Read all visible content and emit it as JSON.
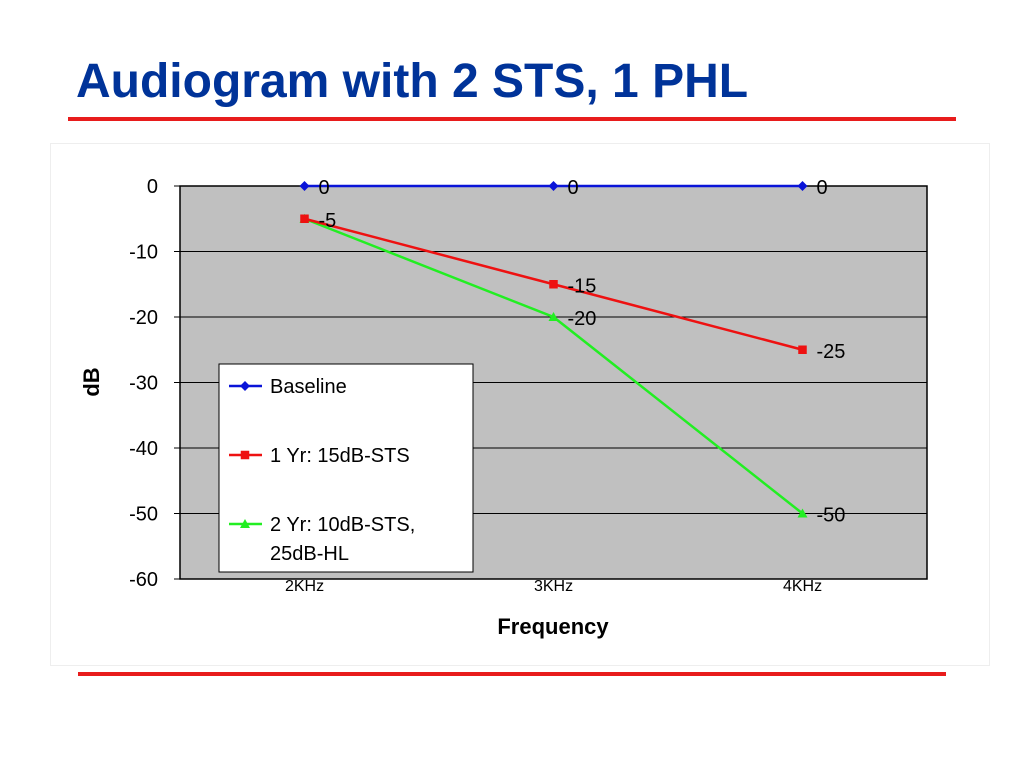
{
  "slide": {
    "title": "Audiogram with 2 STS, 1 PHL"
  },
  "chart_data": {
    "type": "line",
    "categories": [
      "2KHz",
      "3KHz",
      "4KHz"
    ],
    "xlabel": "Frequency",
    "ylabel": "dB",
    "ylim": [
      -60,
      0
    ],
    "yticks": [
      0,
      -10,
      -20,
      -30,
      -40,
      -50,
      -60
    ],
    "grid": true,
    "legend": "lower-left",
    "series": [
      {
        "name": "Baseline",
        "values": [
          0,
          0,
          0
        ],
        "color": "#0a14d8",
        "marker": "diamond",
        "labels": [
          "0",
          "0",
          "0"
        ]
      },
      {
        "name": "1 Yr: 15dB-STS",
        "values": [
          -5,
          -15,
          -25
        ],
        "color": "#ee1111",
        "marker": "square",
        "labels": [
          "-5",
          "-15",
          "-25"
        ]
      },
      {
        "name_lines": [
          "2 Yr: 10dB-STS,",
          "25dB-HL"
        ],
        "values": [
          -5,
          -20,
          -50
        ],
        "color": "#22ee22",
        "marker": "triangle",
        "labels": [
          "",
          "-20",
          "-50"
        ]
      }
    ]
  }
}
